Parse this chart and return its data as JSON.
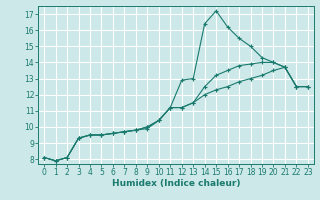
{
  "title": "",
  "xlabel": "Humidex (Indice chaleur)",
  "bg_color": "#cce8e8",
  "grid_color": "#ffffff",
  "line_color": "#1a7a6e",
  "xlim": [
    -0.5,
    23.5
  ],
  "ylim": [
    7.7,
    17.5
  ],
  "xticks": [
    0,
    1,
    2,
    3,
    4,
    5,
    6,
    7,
    8,
    9,
    10,
    11,
    12,
    13,
    14,
    15,
    16,
    17,
    18,
    19,
    20,
    21,
    22,
    23
  ],
  "yticks": [
    8,
    9,
    10,
    11,
    12,
    13,
    14,
    15,
    16,
    17
  ],
  "line1_x": [
    0,
    1,
    2,
    3,
    4,
    5,
    6,
    7,
    8,
    9,
    10,
    11,
    12,
    13,
    14,
    15,
    16,
    17,
    18,
    19,
    20,
    21,
    22,
    23
  ],
  "line1_y": [
    8.1,
    7.9,
    8.1,
    9.3,
    9.5,
    9.5,
    9.6,
    9.7,
    9.8,
    9.9,
    10.4,
    11.2,
    12.9,
    13.0,
    16.4,
    17.2,
    16.2,
    15.5,
    15.0,
    14.3,
    14.0,
    13.7,
    12.5,
    12.5
  ],
  "line2_x": [
    0,
    1,
    2,
    3,
    4,
    5,
    6,
    7,
    8,
    9,
    10,
    11,
    12,
    13,
    14,
    15,
    16,
    17,
    18,
    19,
    20,
    21,
    22,
    23
  ],
  "line2_y": [
    8.1,
    7.9,
    8.1,
    9.3,
    9.5,
    9.5,
    9.6,
    9.7,
    9.8,
    10.0,
    10.4,
    11.2,
    11.2,
    11.5,
    12.5,
    13.2,
    13.5,
    13.8,
    13.9,
    14.0,
    14.0,
    13.7,
    12.5,
    12.5
  ],
  "line3_x": [
    0,
    1,
    2,
    3,
    4,
    5,
    6,
    7,
    8,
    9,
    10,
    11,
    12,
    13,
    14,
    15,
    16,
    17,
    18,
    19,
    20,
    21,
    22,
    23
  ],
  "line3_y": [
    8.1,
    7.9,
    8.1,
    9.3,
    9.5,
    9.5,
    9.6,
    9.7,
    9.8,
    10.0,
    10.4,
    11.2,
    11.2,
    11.5,
    12.0,
    12.3,
    12.5,
    12.8,
    13.0,
    13.2,
    13.5,
    13.7,
    12.5,
    12.5
  ],
  "tick_fontsize": 5.5,
  "xlabel_fontsize": 6.5
}
